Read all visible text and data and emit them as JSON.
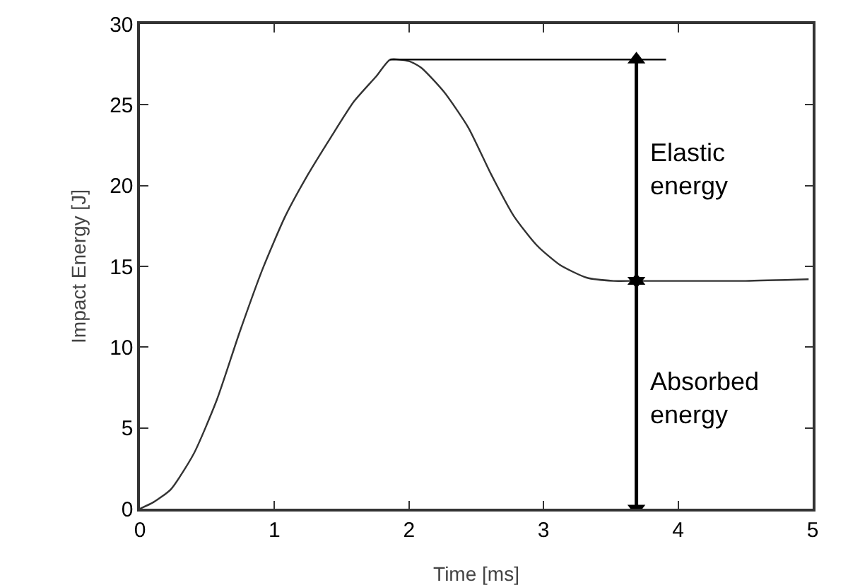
{
  "chart_data": {
    "type": "line",
    "xlabel": "Time [ms]",
    "ylabel": "Impact Energy [J]",
    "xlim": [
      0,
      5
    ],
    "ylim": [
      0,
      30
    ],
    "xticks": [
      0,
      1,
      2,
      3,
      4,
      5
    ],
    "yticks": [
      0,
      5,
      10,
      15,
      20,
      25,
      30
    ],
    "grid": false,
    "series": [
      {
        "color": "#333333",
        "x": [
          0,
          0.1,
          0.23,
          0.4,
          0.57,
          0.74,
          0.91,
          1.08,
          1.25,
          1.42,
          1.59,
          1.76,
          1.86,
          2.0,
          2.09,
          2.26,
          2.44,
          2.61,
          2.78,
          2.95,
          3.12,
          3.32,
          3.52,
          3.69,
          4.0,
          4.5,
          4.97
        ],
        "values": [
          0,
          0.4,
          1.2,
          3.4,
          6.7,
          10.9,
          14.8,
          18.1,
          20.7,
          23.0,
          25.2,
          26.8,
          27.8,
          27.7,
          27.3,
          25.8,
          23.6,
          20.7,
          18.1,
          16.3,
          15.1,
          14.3,
          14.1,
          14.1,
          14.1,
          14.1,
          14.2
        ]
      },
      {
        "color": "#000000",
        "x": [
          1.86,
          3.91
        ],
        "values": [
          27.8,
          27.8
        ]
      },
      {
        "color": "#000000",
        "x": [
          3.69,
          3.69
        ],
        "values": [
          27.8,
          14.1
        ],
        "marker": "triangle"
      },
      {
        "color": "#000000",
        "x": [
          3.69,
          3.69
        ],
        "values": [
          14.1,
          0
        ],
        "marker": "triangle"
      }
    ],
    "annotations": [
      "Elastic energy",
      "Absorbed energy"
    ]
  }
}
